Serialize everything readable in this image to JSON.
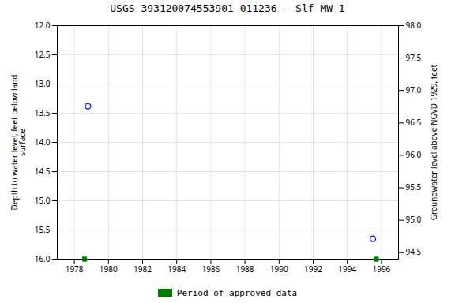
{
  "chart_data": {
    "type": "scatter",
    "title": "USGS 393120074553901 011236-- Slf MW-1",
    "ylabel": "Depth to water level, feet below land\nsurface",
    "y2label": "Groundwater level above NGVD 1929, feet",
    "xlim": [
      1977,
      1997
    ],
    "xticks": [
      1978,
      1980,
      1982,
      1984,
      1986,
      1988,
      1990,
      1992,
      1994,
      1996
    ],
    "ylim": [
      16.0,
      12.0
    ],
    "yticks": [
      {
        "value": 12.0,
        "label": "12.0"
      },
      {
        "value": 12.5,
        "label": "12.5"
      },
      {
        "value": 13.0,
        "label": "13.0"
      },
      {
        "value": 13.5,
        "label": "13.5"
      },
      {
        "value": 14.0,
        "label": "14.0"
      },
      {
        "value": 14.5,
        "label": "14.5"
      },
      {
        "value": 15.0,
        "label": "15.0"
      },
      {
        "value": 15.5,
        "label": "15.5"
      },
      {
        "value": 16.0,
        "label": "16.0"
      }
    ],
    "y2lim": [
      94.4,
      98.0
    ],
    "y2ticks": [
      {
        "value": 98.0,
        "label": "98.0"
      },
      {
        "value": 97.5,
        "label": "97.5"
      },
      {
        "value": 97.0,
        "label": "97.0"
      },
      {
        "value": 96.5,
        "label": "96.5"
      },
      {
        "value": 96.0,
        "label": "96.0"
      },
      {
        "value": 95.5,
        "label": "95.5"
      },
      {
        "value": 95.0,
        "label": "95.0"
      },
      {
        "value": 94.5,
        "label": "94.5"
      }
    ],
    "grid": true,
    "legend": "bottom",
    "series": [
      {
        "color": "blue",
        "marker": "o",
        "x": [
          1978.8,
          1995.5
        ],
        "values": [
          13.38,
          15.65
        ]
      },
      {
        "name": "Period of approved data",
        "color": "#008000",
        "marker": "s",
        "x": [
          1978.6,
          1995.7
        ],
        "values": [
          16.0,
          16.0
        ]
      }
    ]
  }
}
